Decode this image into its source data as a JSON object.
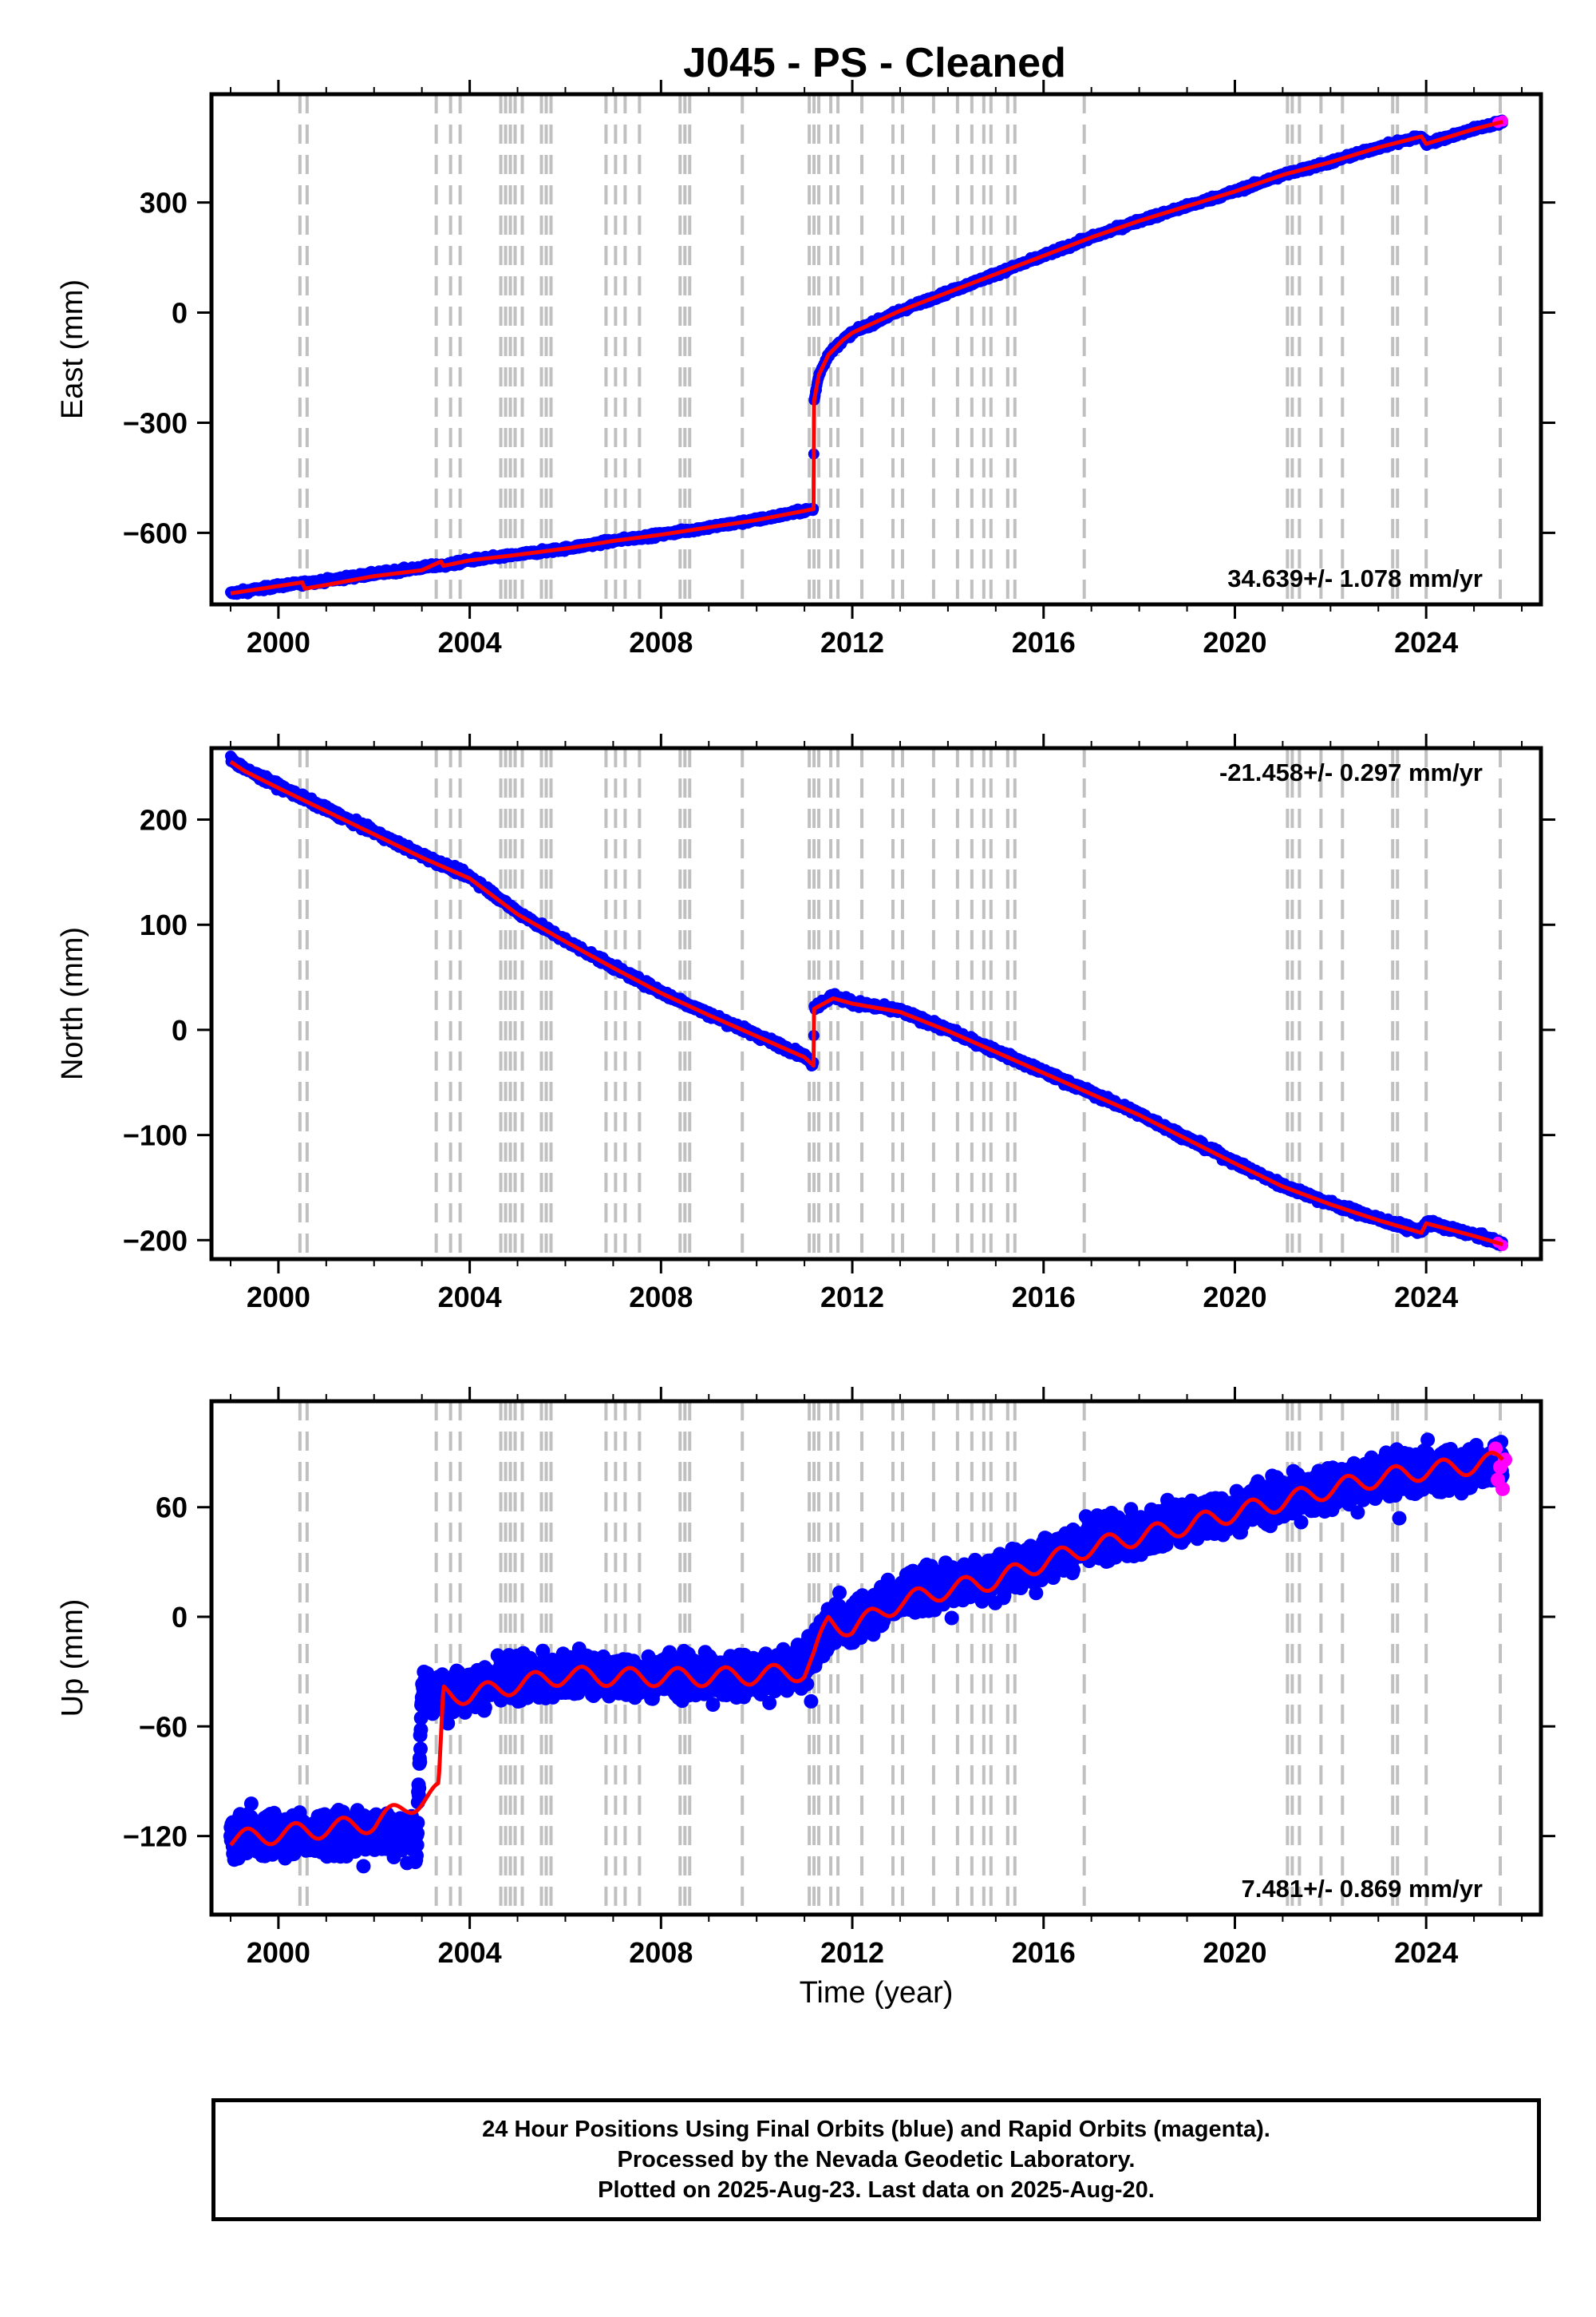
{
  "title": "J045  - PS - Cleaned",
  "footer": {
    "lines": [
      "24 Hour Positions Using Final Orbits (blue) and Rapid Orbits (magenta).",
      "Processed by the Nevada Geodetic Laboratory.",
      "Plotted on 2025-Aug-23. Last data on 2025-Aug-20."
    ]
  },
  "colors": {
    "final_orbits": "#0000ff",
    "rapid_orbits": "#ff00ff",
    "model_fit": "#ff0000",
    "event_lines": "#c0c0c0"
  },
  "chart_data": [
    {
      "type": "scatter",
      "panel": "east",
      "ylabel": "East (mm)",
      "xlabel": "",
      "xlim": [
        1998.6,
        2026.4
      ],
      "ylim": [
        -795,
        595
      ],
      "xticks": [
        2000,
        2004,
        2008,
        2012,
        2016,
        2020,
        2024
      ],
      "yticks": [
        -600,
        -300,
        0,
        300
      ],
      "rate_label": "34.639+/- 1.078 mm/yr",
      "rate_label_position": "bottom-right",
      "series": [
        {
          "name": "Final Orbits (blue)",
          "x": [
            1999.0,
            2000.0,
            2001.0,
            2002.0,
            2003.0,
            2003.4,
            2003.45,
            2004.0,
            2005.0,
            2006.0,
            2007.0,
            2008.0,
            2009.0,
            2010.0,
            2011.0,
            2011.19,
            2011.2,
            2011.3,
            2011.5,
            2011.8,
            2012.0,
            2012.5,
            2013.0,
            2014.0,
            2015.0,
            2016.0,
            2017.0,
            2018.0,
            2019.0,
            2020.0,
            2021.0,
            2022.0,
            2023.0,
            2023.9,
            2024.0,
            2025.0,
            2025.6
          ],
          "y": [
            -765,
            -745,
            -730,
            -712,
            -695,
            -688,
            -690,
            -675,
            -660,
            -643,
            -622,
            -605,
            -585,
            -565,
            -540,
            -535,
            -240,
            -170,
            -115,
            -75,
            -55,
            -25,
            5,
            55,
            105,
            155,
            205,
            250,
            290,
            330,
            375,
            410,
            450,
            480,
            460,
            500,
            520
          ]
        },
        {
          "name": "Rapid Orbits (magenta)",
          "x": [
            2025.5,
            2025.6
          ],
          "y": [
            518,
            522
          ]
        }
      ],
      "model": {
        "x": [
          1999.0,
          2000.0,
          2000.5,
          2000.55,
          2001.0,
          2002.0,
          2003.0,
          2003.4,
          2003.45,
          2004.0,
          2005.0,
          2006.0,
          2007.0,
          2008.0,
          2009.0,
          2010.0,
          2011.0,
          2011.19,
          2011.2,
          2011.3,
          2011.5,
          2011.8,
          2012.0,
          2012.5,
          2013.0,
          2014.0,
          2015.0,
          2016.0,
          2017.0,
          2018.0,
          2019.0,
          2020.0,
          2021.0,
          2022.0,
          2023.0,
          2023.9,
          2024.0,
          2025.0,
          2025.6
        ],
        "y": [
          -765,
          -745,
          -735,
          -752,
          -742,
          -718,
          -702,
          -678,
          -690,
          -675,
          -660,
          -643,
          -622,
          -605,
          -585,
          -565,
          -540,
          -535,
          -240,
          -170,
          -115,
          -75,
          -55,
          -25,
          5,
          55,
          105,
          155,
          205,
          250,
          290,
          330,
          375,
          410,
          450,
          480,
          460,
          500,
          520
        ]
      },
      "event_lines": [
        2000.45,
        2000.6,
        2003.3,
        2003.6,
        2003.8,
        2004.65,
        2004.75,
        2004.85,
        2004.95,
        2005.1,
        2005.5,
        2005.6,
        2005.7,
        2006.85,
        2007.05,
        2007.25,
        2007.55,
        2008.4,
        2008.5,
        2008.6,
        2009.7,
        2011.1,
        2011.2,
        2011.3,
        2011.55,
        2011.7,
        2012.2,
        2012.85,
        2013.05,
        2013.7,
        2014.2,
        2014.5,
        2014.75,
        2014.9,
        2015.25,
        2015.4,
        2016.85,
        2021.1,
        2021.2,
        2021.35,
        2021.8,
        2022.25,
        2023.3,
        2023.4,
        2024.0,
        2025.55
      ]
    },
    {
      "type": "scatter",
      "panel": "north",
      "ylabel": "North (mm)",
      "xlabel": "",
      "xlim": [
        1998.6,
        2026.4
      ],
      "ylim": [
        -218,
        268
      ],
      "xticks": [
        2000,
        2004,
        2008,
        2012,
        2016,
        2020,
        2024
      ],
      "yticks": [
        -200,
        -100,
        0,
        100,
        200
      ],
      "rate_label": "-21.458+/- 0.297 mm/yr",
      "rate_label_position": "top-right",
      "series": [
        {
          "name": "Final Orbits (blue)",
          "x": [
            1999.0,
            1999.3,
            2000.0,
            2001.0,
            2002.0,
            2003.0,
            2004.0,
            2005.0,
            2006.0,
            2007.0,
            2008.0,
            2009.0,
            2010.0,
            2011.0,
            2011.19,
            2011.2,
            2011.6,
            2012.0,
            2013.0,
            2014.0,
            2015.0,
            2016.0,
            2017.0,
            2018.0,
            2019.0,
            2020.0,
            2021.0,
            2022.0,
            2023.0,
            2023.9,
            2024.0,
            2025.0,
            2025.6
          ],
          "y": [
            258,
            248,
            232,
            210,
            188,
            166,
            146,
            112,
            85,
            60,
            36,
            15,
            -5,
            -25,
            -33,
            22,
            32,
            26,
            18,
            0,
            -20,
            -40,
            -60,
            -80,
            -103,
            -126,
            -148,
            -165,
            -180,
            -192,
            -183,
            -195,
            -203
          ]
        },
        {
          "name": "Rapid Orbits (magenta)",
          "x": [
            2025.5,
            2025.6
          ],
          "y": [
            -202,
            -205
          ]
        }
      ],
      "model": {
        "x": [
          1999.0,
          1999.3,
          2000.0,
          2001.0,
          2002.0,
          2003.0,
          2004.0,
          2005.0,
          2006.0,
          2007.0,
          2008.0,
          2009.0,
          2010.0,
          2011.0,
          2011.19,
          2011.2,
          2011.6,
          2012.0,
          2013.0,
          2014.0,
          2015.0,
          2016.0,
          2017.0,
          2018.0,
          2019.0,
          2020.0,
          2021.0,
          2022.0,
          2023.0,
          2023.9,
          2024.0,
          2025.0,
          2025.6
        ],
        "y": [
          255,
          246,
          230,
          208,
          186,
          164,
          144,
          110,
          84,
          59,
          35,
          14,
          -6,
          -26,
          -34,
          20,
          30,
          25,
          17,
          -1,
          -21,
          -41,
          -61,
          -81,
          -104,
          -127,
          -149,
          -166,
          -181,
          -193,
          -184,
          -196,
          -204
        ]
      },
      "event_lines": [
        2000.45,
        2000.6,
        2003.3,
        2003.6,
        2003.8,
        2004.65,
        2004.75,
        2004.85,
        2004.95,
        2005.1,
        2005.5,
        2005.6,
        2005.7,
        2006.85,
        2007.05,
        2007.25,
        2007.55,
        2008.4,
        2008.5,
        2008.6,
        2009.7,
        2011.1,
        2011.2,
        2011.3,
        2011.55,
        2011.7,
        2012.2,
        2012.85,
        2013.05,
        2013.7,
        2014.2,
        2014.5,
        2014.75,
        2014.9,
        2015.25,
        2015.4,
        2016.85,
        2021.1,
        2021.2,
        2021.35,
        2021.8,
        2022.25,
        2023.3,
        2023.4,
        2024.0,
        2025.55
      ]
    },
    {
      "type": "scatter",
      "panel": "up",
      "ylabel": "Up (mm)",
      "xlabel": "Time (year)",
      "xlim": [
        1998.6,
        2026.4
      ],
      "ylim": [
        -163,
        118
      ],
      "xticks": [
        2000,
        2004,
        2008,
        2012,
        2016,
        2020,
        2024
      ],
      "yticks": [
        -120,
        -60,
        0,
        60
      ],
      "rate_label": "7.481+/- 0.869 mm/yr",
      "rate_label_position": "bottom-right",
      "series": [
        {
          "name": "Final Orbits (blue)",
          "x": [
            1999.0,
            2000.0,
            2001.0,
            2002.0,
            2002.9,
            2003.0,
            2004.0,
            2005.0,
            2006.0,
            2007.0,
            2008.0,
            2009.0,
            2010.0,
            2011.0,
            2011.2,
            2011.5,
            2012.0,
            2013.0,
            2014.0,
            2015.0,
            2016.0,
            2017.0,
            2018.0,
            2019.0,
            2020.0,
            2021.0,
            2022.0,
            2023.0,
            2024.0,
            2025.0,
            2025.6
          ],
          "y": [
            -120,
            -118,
            -120,
            -118,
            -121,
            -42,
            -40,
            -35,
            -32,
            -33,
            -32,
            -33,
            -32,
            -28,
            -20,
            -5,
            -2,
            12,
            17,
            22,
            32,
            40,
            45,
            52,
            58,
            65,
            70,
            76,
            80,
            82,
            84
          ]
        },
        {
          "name": "Rapid Orbits (magenta)",
          "x": [
            2025.45,
            2025.5,
            2025.55,
            2025.6,
            2025.65
          ],
          "y": [
            92,
            75,
            82,
            70,
            86
          ]
        }
      ],
      "model": {
        "x": [
          1999.0,
          2002.0,
          2003.0,
          2003.35,
          2003.45,
          2004.0,
          2005.0,
          2006.0,
          2007.0,
          2008.0,
          2009.0,
          2010.0,
          2011.0,
          2011.2,
          2011.5,
          2012.0,
          2013.0,
          2014.0,
          2015.0,
          2016.0,
          2017.0,
          2018.0,
          2019.0,
          2020.0,
          2021.0,
          2022.0,
          2023.0,
          2024.0,
          2025.0,
          2025.6
        ],
        "y": [
          -122,
          -113,
          -100,
          -96,
          -42,
          -43,
          -37,
          -32,
          -33,
          -33,
          -33,
          -32,
          -30,
          -22,
          -3,
          -6,
          8,
          15,
          20,
          30,
          38,
          44,
          50,
          57,
          63,
          70,
          76,
          80,
          83,
          86
        ]
      },
      "event_lines": [
        2000.45,
        2000.6,
        2003.3,
        2003.6,
        2003.8,
        2004.65,
        2004.75,
        2004.85,
        2004.95,
        2005.1,
        2005.5,
        2005.6,
        2005.7,
        2006.85,
        2007.05,
        2007.25,
        2007.55,
        2008.4,
        2008.5,
        2008.6,
        2009.7,
        2011.1,
        2011.2,
        2011.3,
        2011.55,
        2011.7,
        2012.2,
        2012.85,
        2013.05,
        2013.7,
        2014.2,
        2014.5,
        2014.75,
        2014.9,
        2015.25,
        2015.4,
        2016.85,
        2021.1,
        2021.2,
        2021.35,
        2021.8,
        2022.25,
        2023.3,
        2023.4,
        2024.0,
        2025.55
      ]
    }
  ]
}
